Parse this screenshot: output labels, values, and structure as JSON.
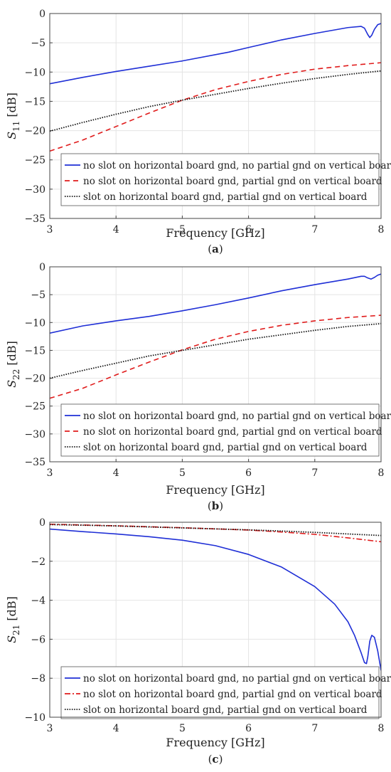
{
  "chart_data": [
    {
      "type": "line",
      "panel": "a",
      "caption_label": "a",
      "xlabel": "Frequency [GHz]",
      "ylabel_main": "S",
      "ylabel_sub": "11",
      "ylabel_unit": " [dB]",
      "xlim": [
        3,
        8
      ],
      "ylim": [
        -35,
        0
      ],
      "xticks": [
        "3",
        "4",
        "5",
        "6",
        "7",
        "8"
      ],
      "yticks": [
        "0",
        "−5",
        "−10",
        "−15",
        "−20",
        "−25",
        "−30",
        "−35"
      ],
      "grid": true,
      "legend_position": "bottom-left",
      "series": [
        {
          "name": "no slot on horizontal board gnd, no partial gnd on vertical board",
          "color": "#1f2fd6",
          "dash": "solid",
          "x": [
            3.0,
            3.5,
            4.0,
            4.5,
            5.0,
            5.7,
            6.0,
            6.5,
            7.0,
            7.5,
            7.7,
            7.75,
            7.8,
            7.83,
            7.86,
            7.9,
            7.95,
            8.0
          ],
          "y": [
            -12.0,
            -10.9,
            -9.9,
            -9.0,
            -8.1,
            -6.6,
            -5.8,
            -4.5,
            -3.4,
            -2.4,
            -2.2,
            -2.5,
            -3.6,
            -4.1,
            -3.7,
            -2.7,
            -1.9,
            -1.7
          ]
        },
        {
          "name": "no slot on horizontal board gnd, partial gnd on vertical board",
          "color": "#e01b1b",
          "dash": "dashed",
          "x": [
            3.0,
            3.5,
            4.0,
            4.5,
            5.0,
            5.5,
            6.0,
            6.5,
            7.0,
            7.5,
            8.0
          ],
          "y": [
            -23.5,
            -21.6,
            -19.3,
            -17.0,
            -14.8,
            -13.0,
            -11.6,
            -10.4,
            -9.5,
            -8.9,
            -8.4
          ]
        },
        {
          "name": "slot on horizontal board gnd, partial gnd on vertical board",
          "color": "#111111",
          "dash": "dotted",
          "x": [
            3.0,
            3.5,
            4.0,
            4.5,
            5.0,
            5.5,
            6.0,
            6.5,
            7.0,
            7.5,
            8.0
          ],
          "y": [
            -20.1,
            -18.6,
            -17.2,
            -15.9,
            -14.8,
            -13.8,
            -12.8,
            -11.9,
            -11.1,
            -10.4,
            -9.8
          ]
        }
      ]
    },
    {
      "type": "line",
      "panel": "b",
      "caption_label": "b",
      "xlabel": "Frequency [GHz]",
      "ylabel_main": "S",
      "ylabel_sub": "22",
      "ylabel_unit": " [dB]",
      "xlim": [
        3,
        8
      ],
      "ylim": [
        -35,
        0
      ],
      "xticks": [
        "3",
        "4",
        "5",
        "6",
        "7",
        "8"
      ],
      "yticks": [
        "0",
        "−5",
        "−10",
        "−15",
        "−20",
        "−25",
        "−30",
        "−35"
      ],
      "grid": true,
      "legend_position": "bottom-left",
      "series": [
        {
          "name": "no slot on horizontal board gnd, no partial gnd on vertical board",
          "color": "#1f2fd6",
          "dash": "solid",
          "x": [
            3.0,
            3.5,
            4.0,
            4.5,
            5.0,
            5.5,
            6.0,
            6.5,
            7.0,
            7.5,
            7.7,
            7.75,
            7.8,
            7.85,
            7.9,
            7.95,
            8.0
          ],
          "y": [
            -11.9,
            -10.6,
            -9.7,
            -8.9,
            -7.9,
            -6.8,
            -5.6,
            -4.3,
            -3.2,
            -2.2,
            -1.7,
            -1.7,
            -2.0,
            -2.2,
            -1.9,
            -1.5,
            -1.3
          ]
        },
        {
          "name": "no slot on horizontal board gnd, partial gnd on vertical board",
          "color": "#e01b1b",
          "dash": "dashed",
          "x": [
            3.0,
            3.5,
            4.0,
            4.5,
            5.0,
            5.5,
            6.0,
            6.5,
            7.0,
            7.5,
            8.0
          ],
          "y": [
            -23.6,
            -21.8,
            -19.4,
            -17.1,
            -14.9,
            -13.0,
            -11.6,
            -10.5,
            -9.7,
            -9.1,
            -8.7
          ]
        },
        {
          "name": "slot on horizontal board gnd, partial gnd on vertical board",
          "color": "#111111",
          "dash": "dotted",
          "x": [
            3.0,
            3.5,
            4.0,
            4.5,
            5.0,
            5.5,
            6.0,
            6.5,
            7.0,
            7.5,
            8.0
          ],
          "y": [
            -20.0,
            -18.6,
            -17.3,
            -16.0,
            -15.0,
            -14.0,
            -13.0,
            -12.2,
            -11.4,
            -10.7,
            -10.2
          ]
        }
      ]
    },
    {
      "type": "line",
      "panel": "c",
      "caption_label": "c",
      "xlabel": "Frequency [GHz]",
      "ylabel_main": "S",
      "ylabel_sub": "21",
      "ylabel_unit": " [dB]",
      "xlim": [
        3,
        8
      ],
      "ylim": [
        -10,
        0
      ],
      "xticks": [
        "3",
        "4",
        "5",
        "6",
        "7",
        "8"
      ],
      "yticks": [
        "0",
        "−2",
        "−4",
        "−6",
        "−8",
        "−10"
      ],
      "grid": true,
      "legend_position": "bottom-left",
      "series": [
        {
          "name": "no slot on horizontal board gnd, no partial gnd on vertical board",
          "color": "#1f2fd6",
          "dash": "solid",
          "x": [
            3.0,
            3.5,
            4.0,
            4.5,
            5.0,
            5.5,
            6.0,
            6.5,
            7.0,
            7.3,
            7.5,
            7.6,
            7.7,
            7.75,
            7.78,
            7.8,
            7.83,
            7.86,
            7.9,
            7.95,
            8.0
          ],
          "y": [
            -0.35,
            -0.48,
            -0.6,
            -0.74,
            -0.92,
            -1.2,
            -1.65,
            -2.3,
            -3.3,
            -4.2,
            -5.1,
            -5.8,
            -6.7,
            -7.2,
            -7.25,
            -6.9,
            -6.1,
            -5.8,
            -5.9,
            -6.6,
            -7.6
          ]
        },
        {
          "name": "no slot on horizontal board gnd, partial gnd on vertical board",
          "color": "#e01b1b",
          "dash": "dashdot",
          "x": [
            3.0,
            3.5,
            4.0,
            4.5,
            5.0,
            5.5,
            6.0,
            6.5,
            7.0,
            7.5,
            8.0
          ],
          "y": [
            -0.1,
            -0.14,
            -0.18,
            -0.23,
            -0.28,
            -0.34,
            -0.4,
            -0.5,
            -0.62,
            -0.8,
            -1.0
          ]
        },
        {
          "name": "slot on horizontal board gnd, partial gnd on vertical board",
          "color": "#111111",
          "dash": "dotted",
          "x": [
            3.0,
            3.5,
            4.0,
            4.5,
            5.0,
            5.5,
            6.0,
            6.5,
            7.0,
            7.5,
            8.0
          ],
          "y": [
            -0.12,
            -0.15,
            -0.19,
            -0.24,
            -0.29,
            -0.34,
            -0.39,
            -0.45,
            -0.52,
            -0.6,
            -0.68
          ]
        }
      ]
    }
  ]
}
